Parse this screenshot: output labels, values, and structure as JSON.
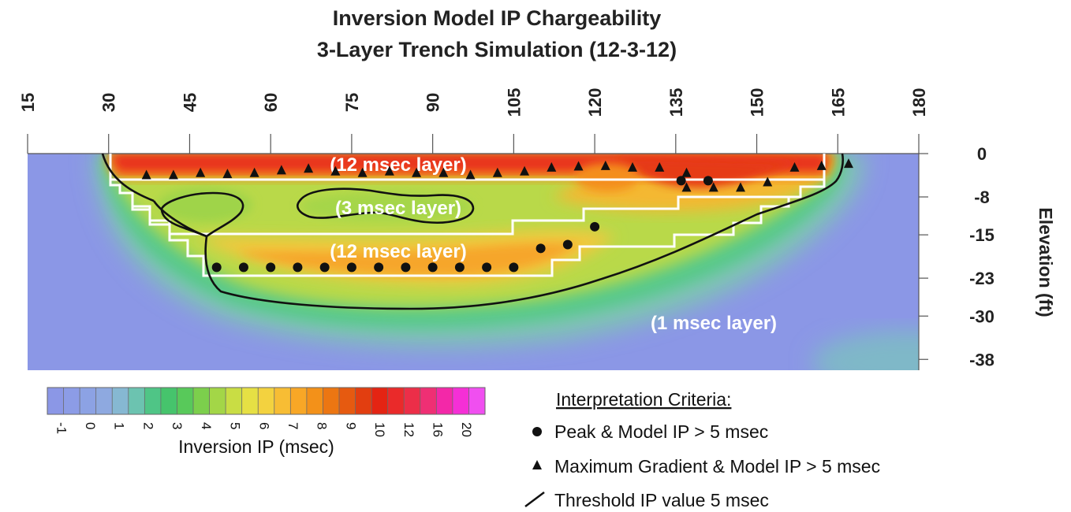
{
  "chart_data": {
    "type": "heatmap",
    "title": "Inversion Model IP Chargeability",
    "subtitle": "3-Layer Trench Simulation (12-3-12)",
    "x_ticks": [
      15,
      30,
      45,
      60,
      75,
      90,
      105,
      120,
      135,
      150,
      165,
      180
    ],
    "xlim": [
      15,
      180
    ],
    "y_ticks": [
      0,
      -8,
      -15,
      -23,
      -30,
      -38
    ],
    "ylim": [
      -40,
      0
    ],
    "ylabel": "Elevation (ft)",
    "layer_labels": [
      "(12 msec layer)",
      "(3 msec layer)",
      "(12 msec layer)",
      "(1 msec layer)"
    ],
    "colorbar": {
      "label": "Inversion IP (msec)",
      "tick_labels": [
        "-1",
        "0",
        "1",
        "2",
        "3",
        "4",
        "5",
        "6",
        "7",
        "8",
        "9",
        "10",
        "12",
        "16",
        "20"
      ],
      "colors": [
        "#8b97e6",
        "#8c9ce6",
        "#8ca2e4",
        "#8ea9e0",
        "#86b8d2",
        "#6cc3b0",
        "#4fc586",
        "#46c46c",
        "#58c95a",
        "#7ccf4c",
        "#a3d647",
        "#c9dd44",
        "#e6e044",
        "#f3d23f",
        "#f7bd34",
        "#f8a726",
        "#f39119",
        "#ec7612",
        "#e65a10",
        "#e23e10",
        "#e42413",
        "#ea2a2a",
        "#ec2e48",
        "#ef2f74",
        "#f328a8",
        "#f52fd6",
        "#f04ff0"
      ]
    },
    "series": [
      {
        "name": "Peak & Model IP > 5 msec",
        "marker": "circle",
        "points": [
          [
            50,
            -21
          ],
          [
            55,
            -21
          ],
          [
            60,
            -21
          ],
          [
            65,
            -21
          ],
          [
            70,
            -21
          ],
          [
            75,
            -21
          ],
          [
            80,
            -21
          ],
          [
            85,
            -21
          ],
          [
            90,
            -21
          ],
          [
            95,
            -21
          ],
          [
            100,
            -21
          ],
          [
            105,
            -21
          ],
          [
            110,
            -17.5
          ],
          [
            115,
            -16.8
          ],
          [
            120,
            -13.5
          ],
          [
            136,
            -5
          ],
          [
            141,
            -5
          ]
        ]
      },
      {
        "name": "Maximum Gradient & Model IP > 5 msec",
        "marker": "triangle",
        "points": [
          [
            37,
            -4
          ],
          [
            42,
            -4
          ],
          [
            47,
            -3.6
          ],
          [
            52,
            -3.8
          ],
          [
            57,
            -3.6
          ],
          [
            62,
            -3.1
          ],
          [
            67,
            -2.8
          ],
          [
            72,
            -3.3
          ],
          [
            77,
            -3.6
          ],
          [
            82,
            -3.3
          ],
          [
            87,
            -3.6
          ],
          [
            92,
            -3.6
          ],
          [
            97,
            -4
          ],
          [
            102,
            -3.6
          ],
          [
            107,
            -3.3
          ],
          [
            112,
            -2.6
          ],
          [
            117,
            -2.4
          ],
          [
            122,
            -2.3
          ],
          [
            127,
            -2.6
          ],
          [
            132,
            -2.6
          ],
          [
            137,
            -3.6
          ],
          [
            137,
            -6.3
          ],
          [
            142,
            -6.3
          ],
          [
            147,
            -6.3
          ],
          [
            152,
            -5.3
          ],
          [
            157,
            -2.6
          ],
          [
            162,
            -2.3
          ],
          [
            167,
            -1.9
          ]
        ]
      }
    ],
    "contour_label": "Threshold IP value 5 msec",
    "legend": {
      "title": "Interpretation Criteria:",
      "items": [
        "Peak & Model IP > 5 msec",
        "Maximum Gradient & Model IP > 5 msec",
        "Threshold IP value 5 msec"
      ],
      "placement": "bottom-right"
    }
  }
}
